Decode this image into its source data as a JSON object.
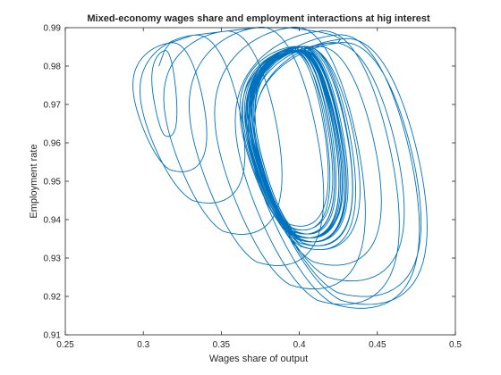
{
  "chart_data": {
    "type": "line",
    "title": "Mixed-economy wages share and employment interactions at hig interest",
    "xlabel": "Wages share of output",
    "ylabel": "Employment rate",
    "xlim": [
      0.25,
      0.5
    ],
    "ylim": [
      0.91,
      0.99
    ],
    "x_ticks": [
      0.25,
      0.3,
      0.35,
      0.4,
      0.45,
      0.5
    ],
    "x_tick_labels": [
      "0.25",
      "0.3",
      "0.35",
      "0.4",
      "0.45",
      "0.5"
    ],
    "y_ticks": [
      0.91,
      0.92,
      0.93,
      0.94,
      0.95,
      0.96,
      0.97,
      0.98,
      0.99
    ],
    "y_tick_labels": [
      "0.91",
      "0.92",
      "0.93",
      "0.94",
      "0.95",
      "0.96",
      "0.97",
      "0.98",
      "0.99"
    ],
    "grid": false,
    "box": true,
    "line_color": "#0072bd",
    "series": [
      {
        "start": [
          0.31,
          0.98
        ],
        "loops": [
          {
            "x_min": 0.305,
            "x_max": 0.322,
            "y_min": 0.962,
            "y_max": 0.984
          },
          {
            "x_min": 0.292,
            "x_max": 0.342,
            "y_min": 0.953,
            "y_max": 0.986
          },
          {
            "x_min": 0.296,
            "x_max": 0.367,
            "y_min": 0.945,
            "y_max": 0.988
          },
          {
            "x_min": 0.311,
            "x_max": 0.391,
            "y_min": 0.937,
            "y_max": 0.989
          },
          {
            "x_min": 0.327,
            "x_max": 0.418,
            "y_min": 0.929,
            "y_max": 0.99
          },
          {
            "x_min": 0.343,
            "x_max": 0.445,
            "y_min": 0.923,
            "y_max": 0.99
          },
          {
            "x_min": 0.356,
            "x_max": 0.467,
            "y_min": 0.919,
            "y_max": 0.989
          },
          {
            "x_min": 0.364,
            "x_max": 0.48,
            "y_min": 0.918,
            "y_max": 0.988
          },
          {
            "x_min": 0.368,
            "x_max": 0.485,
            "y_min": 0.919,
            "y_max": 0.987
          },
          {
            "x_min": 0.368,
            "x_max": 0.481,
            "y_min": 0.921,
            "y_max": 0.986
          },
          {
            "x_min": 0.366,
            "x_max": 0.47,
            "y_min": 0.925,
            "y_max": 0.986
          },
          {
            "x_min": 0.363,
            "x_max": 0.455,
            "y_min": 0.929,
            "y_max": 0.985
          },
          {
            "x_min": 0.361,
            "x_max": 0.441,
            "y_min": 0.933,
            "y_max": 0.985
          },
          {
            "x_min": 0.36,
            "x_max": 0.43,
            "y_min": 0.936,
            "y_max": 0.985
          },
          {
            "x_min": 0.362,
            "x_max": 0.423,
            "y_min": 0.938,
            "y_max": 0.984
          },
          {
            "x_min": 0.365,
            "x_max": 0.42,
            "y_min": 0.939,
            "y_max": 0.984
          },
          {
            "x_min": 0.368,
            "x_max": 0.421,
            "y_min": 0.938,
            "y_max": 0.984
          },
          {
            "x_min": 0.37,
            "x_max": 0.425,
            "y_min": 0.937,
            "y_max": 0.984
          },
          {
            "x_min": 0.37,
            "x_max": 0.431,
            "y_min": 0.935,
            "y_max": 0.984
          },
          {
            "x_min": 0.368,
            "x_max": 0.436,
            "y_min": 0.934,
            "y_max": 0.985
          },
          {
            "x_min": 0.366,
            "x_max": 0.438,
            "y_min": 0.933,
            "y_max": 0.985
          },
          {
            "x_min": 0.364,
            "x_max": 0.436,
            "y_min": 0.934,
            "y_max": 0.985
          },
          {
            "x_min": 0.363,
            "x_max": 0.432,
            "y_min": 0.935,
            "y_max": 0.985
          },
          {
            "x_min": 0.364,
            "x_max": 0.427,
            "y_min": 0.936,
            "y_max": 0.984
          },
          {
            "x_min": 0.366,
            "x_max": 0.424,
            "y_min": 0.937,
            "y_max": 0.984
          },
          {
            "x_min": 0.368,
            "x_max": 0.424,
            "y_min": 0.937,
            "y_max": 0.984
          },
          {
            "x_min": 0.369,
            "x_max": 0.427,
            "y_min": 0.936,
            "y_max": 0.984
          },
          {
            "x_min": 0.368,
            "x_max": 0.431,
            "y_min": 0.935,
            "y_max": 0.984
          },
          {
            "x_min": 0.366,
            "x_max": 0.433,
            "y_min": 0.935,
            "y_max": 0.985
          },
          {
            "x_min": 0.365,
            "x_max": 0.432,
            "y_min": 0.935,
            "y_max": 0.985
          },
          {
            "x_min": 0.365,
            "x_max": 0.429,
            "y_min": 0.936,
            "y_max": 0.984
          },
          {
            "x_min": 0.366,
            "x_max": 0.427,
            "y_min": 0.936,
            "y_max": 0.984
          },
          {
            "x_min": 0.367,
            "x_max": 0.427,
            "y_min": 0.936,
            "y_max": 0.984
          },
          {
            "x_min": 0.368,
            "x_max": 0.429,
            "y_min": 0.936,
            "y_max": 0.984
          },
          {
            "x_min": 0.367,
            "x_max": 0.431,
            "y_min": 0.935,
            "y_max": 0.984
          },
          {
            "x_min": 0.366,
            "x_max": 0.431,
            "y_min": 0.935,
            "y_max": 0.985
          },
          {
            "x_min": 0.366,
            "x_max": 0.429,
            "y_min": 0.936,
            "y_max": 0.984
          },
          {
            "x_min": 0.367,
            "x_max": 0.428,
            "y_min": 0.936,
            "y_max": 0.984
          },
          {
            "x_min": 0.367,
            "x_max": 0.429,
            "y_min": 0.936,
            "y_max": 0.984
          }
        ]
      }
    ]
  }
}
